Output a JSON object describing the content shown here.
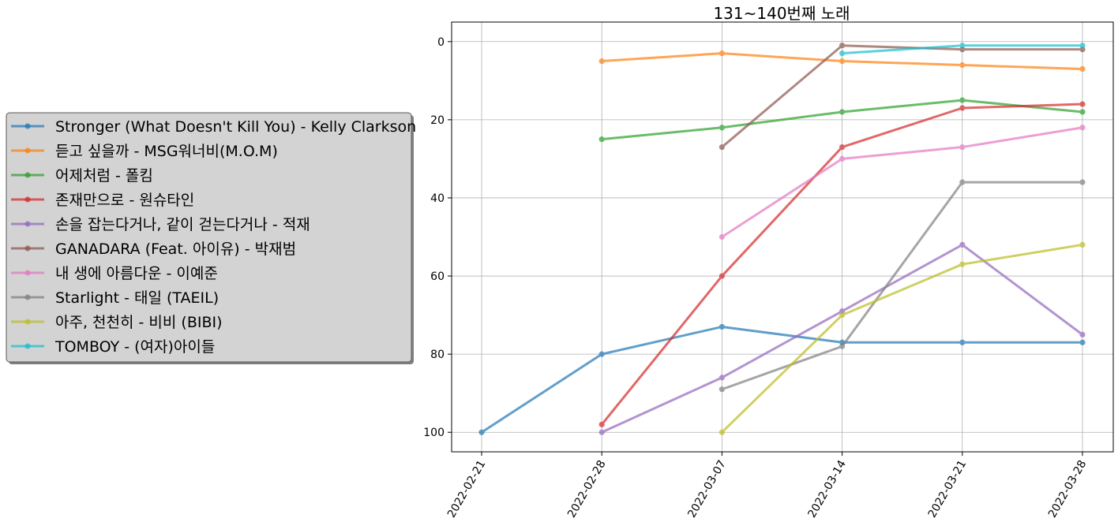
{
  "chart_data": {
    "type": "line",
    "title": "131~140번째 노래",
    "xlabel": "",
    "ylabel": "",
    "x": [
      "2022-02-21",
      "2022-02-28",
      "2022-03-07",
      "2022-03-14",
      "2022-03-21",
      "2022-03-28"
    ],
    "ylim": [
      105,
      -5
    ],
    "y_inverted": true,
    "yticks": [
      0,
      20,
      40,
      60,
      80,
      100
    ],
    "grid": true,
    "legend_position": "left",
    "series": [
      {
        "name": "Stronger (What Doesn't Kill You) - Kelly Clarkson",
        "color": "#1f77b4",
        "values": [
          100,
          80,
          73,
          77,
          77,
          77
        ]
      },
      {
        "name": "듣고 싶을까 - MSG워너비(M.O.M)",
        "color": "#ff7f0e",
        "values": [
          null,
          5,
          3,
          5,
          6,
          7
        ]
      },
      {
        "name": "어제처럼 - 폴킴",
        "color": "#2ca02c",
        "values": [
          null,
          25,
          22,
          18,
          15,
          18
        ]
      },
      {
        "name": "존재만으로 - 원슈타인",
        "color": "#d62728",
        "values": [
          null,
          98,
          60,
          27,
          17,
          16
        ]
      },
      {
        "name": "손을 잡는다거나, 같이 걷는다거나 - 적재",
        "color": "#9467bd",
        "values": [
          null,
          100,
          86,
          69,
          52,
          75
        ]
      },
      {
        "name": "GANADARA (Feat. 아이유) - 박재범",
        "color": "#8c564b",
        "values": [
          null,
          null,
          27,
          1,
          2,
          2
        ]
      },
      {
        "name": "내 생에 아름다운 - 이예준",
        "color": "#e377c2",
        "values": [
          null,
          null,
          50,
          30,
          27,
          22
        ]
      },
      {
        "name": "Starlight - 태일 (TAEIL)",
        "color": "#7f7f7f",
        "values": [
          null,
          null,
          89,
          78,
          36,
          36
        ]
      },
      {
        "name": "아주, 천천히 - 비비 (BIBI)",
        "color": "#bcbd22",
        "values": [
          null,
          null,
          100,
          70,
          57,
          52
        ]
      },
      {
        "name": "TOMBOY - (여자)아이들",
        "color": "#17becf",
        "values": [
          null,
          null,
          null,
          3,
          1,
          1
        ]
      }
    ]
  }
}
